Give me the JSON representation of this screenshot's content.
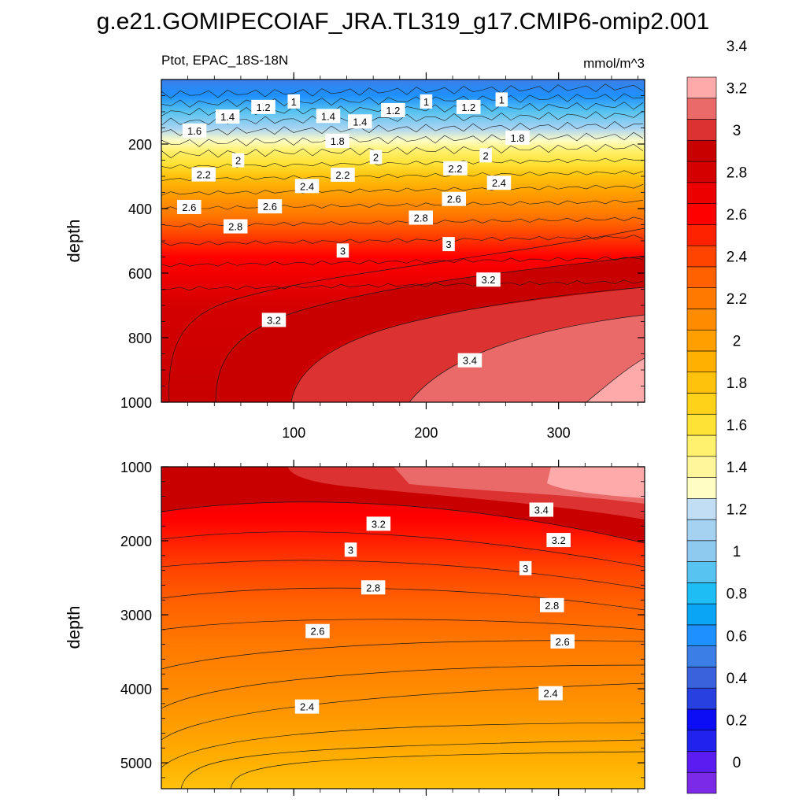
{
  "title": "g.e21.GOMIPECOIAF_JRA.TL319_g17.CMIP6-omip2.001",
  "chart_data": [
    {
      "type": "contour",
      "panel": "upper",
      "left_title": "Ptot, EPAC_18S-18N",
      "right_title": "mmol/m^3",
      "xlabel": "",
      "ylabel": "depth",
      "xlim": [
        0,
        365
      ],
      "ylim": [
        0,
        1000
      ],
      "y_reversed": true,
      "x_ticks": [
        {
          "v": 100,
          "label": "100"
        },
        {
          "v": 200,
          "label": "200"
        },
        {
          "v": 300,
          "label": "300"
        }
      ],
      "y_ticks": [
        {
          "v": 200,
          "label": "200"
        },
        {
          "v": 400,
          "label": "400"
        },
        {
          "v": 600,
          "label": "600"
        },
        {
          "v": 800,
          "label": "800"
        },
        {
          "v": 1000,
          "label": "1000"
        }
      ],
      "contour_labels": [
        {
          "text": "1.2",
          "x": 77,
          "y": 85
        },
        {
          "text": "1",
          "x": 100,
          "y": 68
        },
        {
          "text": "1.2",
          "x": 175,
          "y": 95
        },
        {
          "text": "1",
          "x": 200,
          "y": 68
        },
        {
          "text": "1.2",
          "x": 232,
          "y": 85
        },
        {
          "text": "1",
          "x": 257,
          "y": 62
        },
        {
          "text": "1.4",
          "x": 50,
          "y": 115
        },
        {
          "text": "1.4",
          "x": 126,
          "y": 113
        },
        {
          "text": "1.4",
          "x": 150,
          "y": 130
        },
        {
          "text": "1.6",
          "x": 25,
          "y": 158
        },
        {
          "text": "1.8",
          "x": 133,
          "y": 190
        },
        {
          "text": "1.8",
          "x": 269,
          "y": 180
        },
        {
          "text": "2",
          "x": 58,
          "y": 250
        },
        {
          "text": "2",
          "x": 162,
          "y": 240
        },
        {
          "text": "2",
          "x": 245,
          "y": 235
        },
        {
          "text": "2.2",
          "x": 32,
          "y": 294
        },
        {
          "text": "2.2",
          "x": 137,
          "y": 295
        },
        {
          "text": "2.2",
          "x": 222,
          "y": 275
        },
        {
          "text": "2.4",
          "x": 110,
          "y": 330
        },
        {
          "text": "2.4",
          "x": 255,
          "y": 320
        },
        {
          "text": "2.6",
          "x": 21,
          "y": 395
        },
        {
          "text": "2.6",
          "x": 82,
          "y": 393
        },
        {
          "text": "2.6",
          "x": 221,
          "y": 370
        },
        {
          "text": "2.8",
          "x": 56,
          "y": 455
        },
        {
          "text": "2.8",
          "x": 196,
          "y": 428
        },
        {
          "text": "3",
          "x": 137,
          "y": 530
        },
        {
          "text": "3",
          "x": 217,
          "y": 510
        },
        {
          "text": "3.2",
          "x": 247,
          "y": 620
        },
        {
          "text": "3.2",
          "x": 85,
          "y": 745
        },
        {
          "text": "3.4",
          "x": 233,
          "y": 870
        }
      ]
    },
    {
      "type": "contour",
      "panel": "lower",
      "xlabel": "",
      "ylabel": "depth",
      "xlim": [
        0,
        365
      ],
      "ylim": [
        1000,
        5350
      ],
      "y_reversed": true,
      "y_ticks": [
        {
          "v": 1000,
          "label": "1000"
        },
        {
          "v": 2000,
          "label": "2000"
        },
        {
          "v": 3000,
          "label": "3000"
        },
        {
          "v": 4000,
          "label": "4000"
        },
        {
          "v": 5000,
          "label": "5000"
        }
      ],
      "contour_labels": [
        {
          "text": "3.4",
          "x": 287,
          "y": 1580
        },
        {
          "text": "3.2",
          "x": 164,
          "y": 1770
        },
        {
          "text": "3.2",
          "x": 300,
          "y": 1990
        },
        {
          "text": "3",
          "x": 143,
          "y": 2120
        },
        {
          "text": "3",
          "x": 275,
          "y": 2370
        },
        {
          "text": "2.8",
          "x": 160,
          "y": 2630
        },
        {
          "text": "2.8",
          "x": 295,
          "y": 2870
        },
        {
          "text": "2.6",
          "x": 118,
          "y": 3220
        },
        {
          "text": "2.6",
          "x": 303,
          "y": 3360
        },
        {
          "text": "2.4",
          "x": 294,
          "y": 4060
        },
        {
          "text": "2.4",
          "x": 110,
          "y": 4240
        }
      ]
    }
  ],
  "colorbar": {
    "labels": [
      {
        "v": 0,
        "text": "0"
      },
      {
        "v": 0.2,
        "text": "0.2"
      },
      {
        "v": 0.4,
        "text": "0.4"
      },
      {
        "v": 0.6,
        "text": "0.6"
      },
      {
        "v": 0.8,
        "text": "0.8"
      },
      {
        "v": 1,
        "text": "1"
      },
      {
        "v": 1.2,
        "text": "1.2"
      },
      {
        "v": 1.4,
        "text": "1.4"
      },
      {
        "v": 1.6,
        "text": "1.6"
      },
      {
        "v": 1.8,
        "text": "1.8"
      },
      {
        "v": 2,
        "text": "2"
      },
      {
        "v": 2.2,
        "text": "2.2"
      },
      {
        "v": 2.4,
        "text": "2.4"
      },
      {
        "v": 2.6,
        "text": "2.6"
      },
      {
        "v": 2.8,
        "text": "2.8"
      },
      {
        "v": 3,
        "text": "3"
      },
      {
        "v": 3.2,
        "text": "3.2"
      },
      {
        "v": 3.4,
        "text": "3.4"
      }
    ],
    "colors": [
      "#7b2be8",
      "#5a1cf0",
      "#2222ee",
      "#0c0cf5",
      "#2840e0",
      "#3a62dc",
      "#3b7fe6",
      "#1e90ff",
      "#0aa6f5",
      "#1ebef5",
      "#57c3f0",
      "#8ec9ef",
      "#a6d2f2",
      "#c1def5",
      "#fffdc4",
      "#fff59a",
      "#fff06e",
      "#ffe236",
      "#ffd21a",
      "#ffc20c",
      "#ffb000",
      "#ffa000",
      "#ff8c00",
      "#ff7800",
      "#ff6000",
      "#ff4400",
      "#ff2200",
      "#ff0000",
      "#ed0000",
      "#d40000",
      "#c80000",
      "#dc3232",
      "#ea6a6a",
      "#ffaaaa"
    ]
  }
}
